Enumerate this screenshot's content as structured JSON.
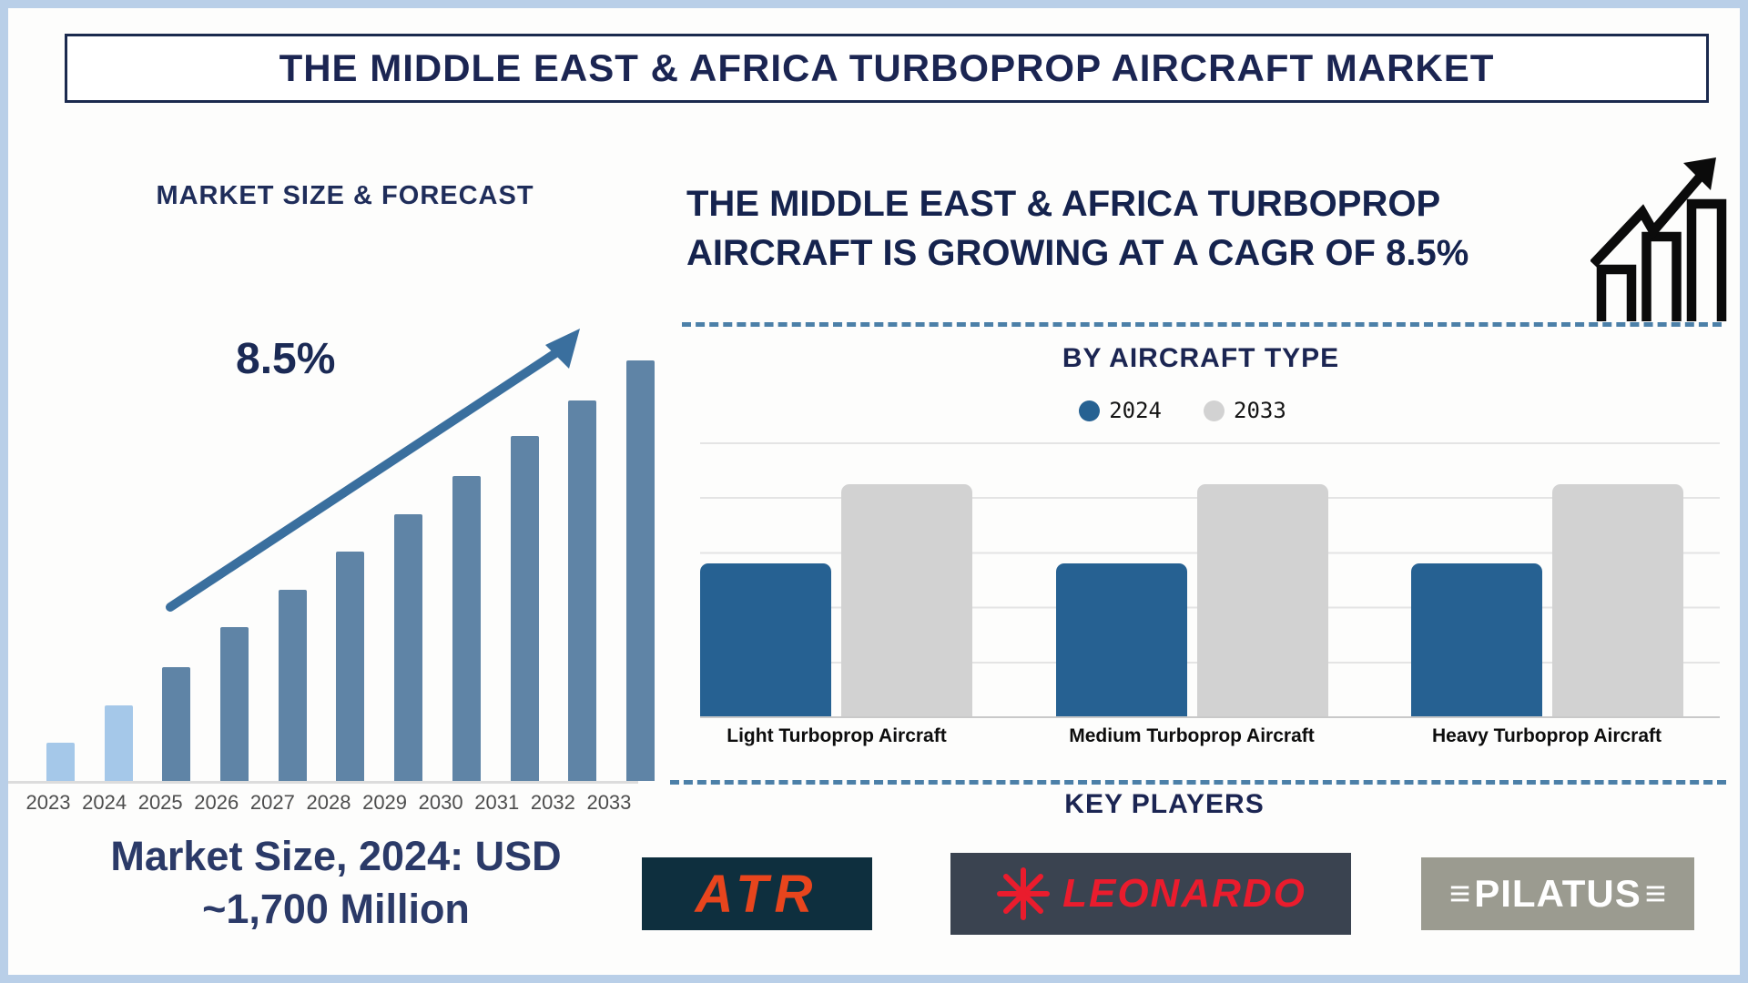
{
  "page": {
    "title": "THE MIDDLE EAST & AFRICA TURBOPROP AIRCRAFT MARKET"
  },
  "left_section": {
    "chart_title": "MARKET SIZE & FORECAST",
    "cagr_annotation": "8.5%",
    "footer_line1": "Market Size, 2024: USD",
    "footer_line2": "~1,700 Million"
  },
  "right_section": {
    "heading": "THE MIDDLE EAST & AFRICA TURBOPROP AIRCRAFT IS GROWING AT A CAGR OF 8.5%",
    "by_type_title": "BY AIRCRAFT TYPE",
    "legend": [
      {
        "label": "2024",
        "color": "#266192"
      },
      {
        "label": "2033",
        "color": "#d2d2d2"
      }
    ],
    "key_players_title": "KEY PLAYERS",
    "key_players": [
      "ATR",
      "LEONARDO",
      "PILATUS"
    ]
  },
  "chart_data": [
    {
      "type": "bar",
      "title": "MARKET SIZE & FORECAST",
      "categories": [
        "2023",
        "2024",
        "2025",
        "2026",
        "2027",
        "2028",
        "2029",
        "2030",
        "2031",
        "2032",
        "2033"
      ],
      "values": [
        9,
        18,
        27,
        36.5,
        45.5,
        54.5,
        63.5,
        72.5,
        82,
        90.5,
        100
      ],
      "unit": "relative bar height, % of 2033 (value axis unlabeled)",
      "known_point": "2024 = USD ~1,700 Million",
      "annotation": "8.5% CAGR trend arrow rising left-to-right",
      "bar_color": "#5f84a6",
      "highlight_bar_color": "#a5c8e9",
      "highlight_years": [
        "2023",
        "2024"
      ],
      "xlabel": "",
      "ylabel": "",
      "grid": false,
      "legend_position": "none"
    },
    {
      "type": "bar",
      "title": "BY AIRCRAFT TYPE",
      "categories": [
        "Light Turboprop Aircraft",
        "Medium Turboprop Aircraft",
        "Heavy Turboprop Aircraft"
      ],
      "series": [
        {
          "name": "2024",
          "color": "#266192",
          "values": [
            66,
            66,
            66
          ]
        },
        {
          "name": "2033",
          "color": "#d2d2d2",
          "values": [
            100,
            100,
            100
          ]
        }
      ],
      "unit": "relative bar height, % of 2033 (value axis unlabeled)",
      "grid": true,
      "legend_position": "top"
    }
  ],
  "colors": {
    "navy_text": "#1b2552",
    "frame_border": "#b9cfe8",
    "divider_dash": "#4c80a8",
    "arrow": "#3a6f9e",
    "gridline": "#e4e4e4",
    "atr_bg": "#0e2f3e",
    "atr_text": "#e8451d",
    "leonardo_bg": "#3a4350",
    "leonardo_text": "#ea1c2d",
    "pilatus_bg": "#9b9b90",
    "pilatus_text": "#ffffff"
  }
}
